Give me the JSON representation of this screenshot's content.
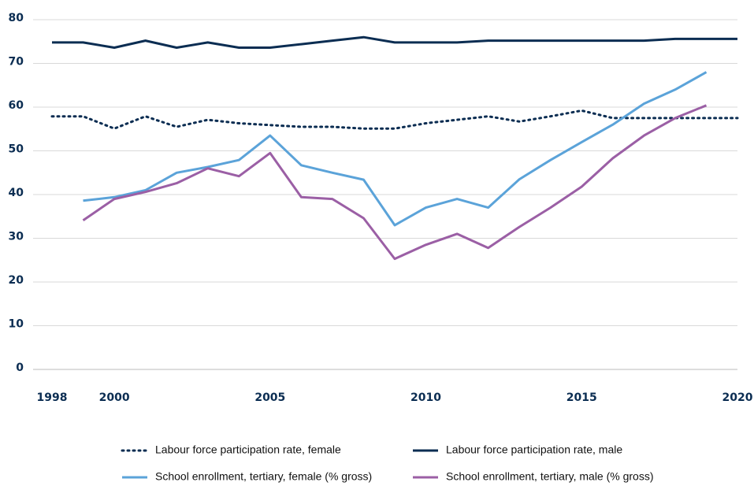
{
  "chart_data": {
    "type": "line",
    "x": [
      1998,
      1999,
      2000,
      2001,
      2002,
      2003,
      2004,
      2005,
      2006,
      2007,
      2008,
      2009,
      2010,
      2011,
      2012,
      2013,
      2014,
      2015,
      2016,
      2017,
      2018,
      2019,
      2020
    ],
    "xlim": [
      1998,
      2020
    ],
    "xticks": [
      1998,
      2000,
      2005,
      2010,
      2015,
      2020
    ],
    "ylim": [
      0,
      80
    ],
    "yticks": [
      0,
      10,
      20,
      30,
      40,
      50,
      60,
      70,
      80
    ],
    "grid": true,
    "legend": "bottom",
    "series": [
      {
        "name": "Labour force participation rate, female",
        "color": "#0b2d52",
        "style": "dotted",
        "values": [
          57.9,
          57.9,
          55.1,
          57.9,
          55.5,
          57.1,
          56.3,
          55.9,
          55.5,
          55.5,
          55.1,
          55.1,
          56.3,
          57.1,
          57.9,
          56.7,
          57.9,
          59.2,
          57.5,
          57.5,
          57.5,
          57.5,
          57.5
        ]
      },
      {
        "name": "Labour force participation rate, male",
        "color": "#0b2d52",
        "style": "solid",
        "values": [
          74.8,
          74.8,
          73.6,
          75.2,
          73.6,
          74.8,
          73.6,
          73.6,
          74.4,
          75.2,
          76.0,
          74.8,
          74.8,
          74.8,
          75.2,
          75.2,
          75.2,
          75.2,
          75.2,
          75.2,
          75.6,
          75.6,
          75.6
        ]
      },
      {
        "name": "School enrollment, tertiary, female (% gross)",
        "color": "#5ba3d9",
        "style": "solid",
        "values": [
          null,
          38.6,
          39.4,
          41.0,
          45.0,
          46.3,
          47.9,
          53.5,
          46.7,
          45.0,
          43.4,
          33.0,
          37.0,
          39.0,
          37.0,
          43.5,
          47.9,
          52.0,
          56.0,
          60.8,
          64.0,
          68.0,
          null
        ]
      },
      {
        "name": "School enrollment, tertiary, male (% gross)",
        "color": "#9b5fa5",
        "style": "solid",
        "values": [
          null,
          34.1,
          39.0,
          40.6,
          42.6,
          46.0,
          44.2,
          49.5,
          39.4,
          39.0,
          34.6,
          25.3,
          28.5,
          31.0,
          27.8,
          32.6,
          37.0,
          41.8,
          48.3,
          53.5,
          57.5,
          60.4,
          null
        ]
      }
    ]
  }
}
